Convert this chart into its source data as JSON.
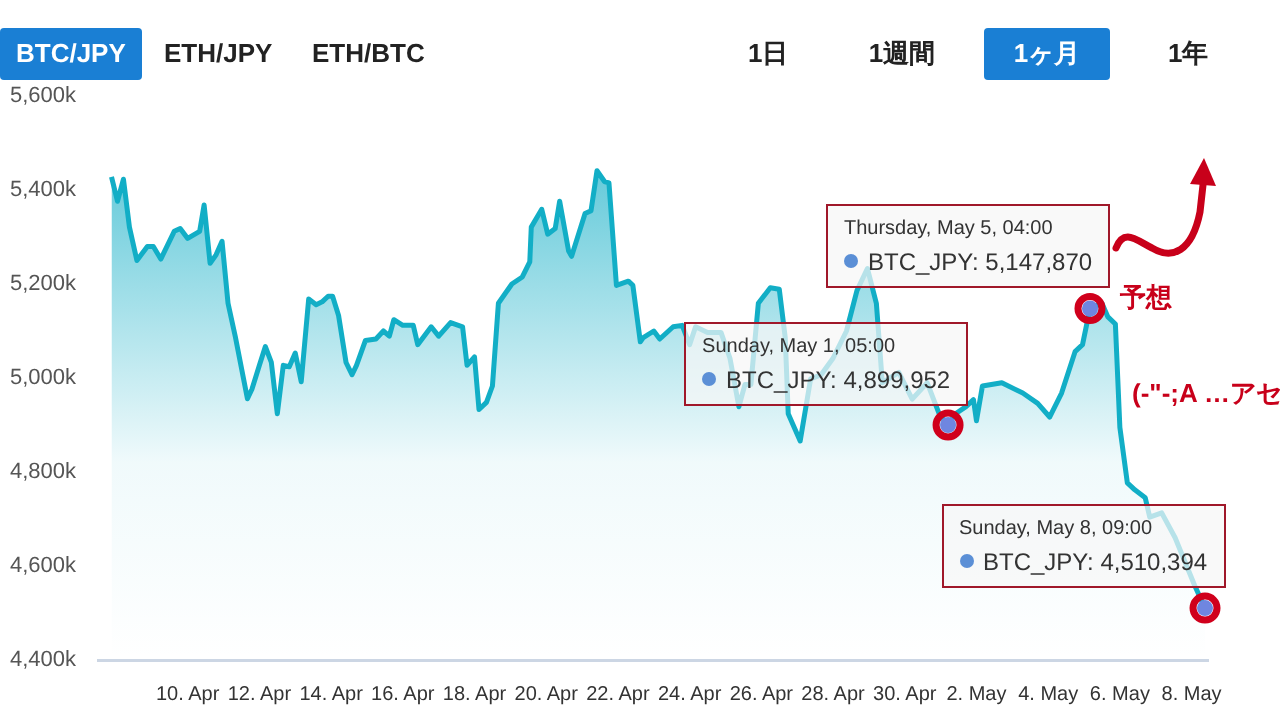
{
  "chart_data": {
    "type": "area",
    "color": "#12aec6",
    "marker": "none",
    "grid": false,
    "legend": false,
    "x": [
      "--04-07T21:00",
      "--04-08T01:00",
      "--04-08T05:00",
      "--04-08T09:00",
      "--04-08T14:00",
      "--04-08T21:00",
      "--04-09T01:00",
      "--04-09T06:00",
      "--04-09T15:00",
      "--04-09T19:00",
      "--04-10T00:00",
      "--04-10T08:00",
      "--04-10T11:00",
      "--04-10T15:00",
      "--04-10T19:00",
      "--04-10T23:00",
      "--04-11T03:00",
      "--04-11T08:00",
      "--04-11T16:00",
      "--04-11T19:00",
      "--04-12T00:00",
      "--04-12T04:00",
      "--04-12T08:00",
      "--04-12T12:00",
      "--04-12T16:00",
      "--04-12T20:00",
      "--04-13T00:00",
      "--04-13T04:00",
      "--04-13T09:00",
      "--04-13T14:00",
      "--04-13T18:00",
      "--04-13T22:00",
      "--04-14T01:00",
      "--04-14T05:00",
      "--04-14T10:00",
      "--04-14T14:00",
      "--04-14T17:00",
      "--04-14T23:00",
      "--04-15T06:00",
      "--04-15T11:00",
      "--04-15T15:00",
      "--04-15T18:00",
      "--04-16T00:00",
      "--04-16T07:00",
      "--04-16T10:00",
      "--04-16T19:00",
      "--04-17T00:00",
      "--04-17T08:00",
      "--04-17T16:00",
      "--04-17T19:00",
      "--04-18T00:00",
      "--04-18T03:00",
      "--04-18T08:00",
      "--04-18T12:00",
      "--04-18T16:00",
      "--04-19T01:00",
      "--04-19T08:00",
      "--04-19T13:00",
      "--04-19T14:00",
      "--04-19T21:00",
      "--04-20T01:00",
      "--04-20T06:00",
      "--04-20T09:00",
      "--04-20T15:00",
      "--04-20T17:00",
      "--04-21T02:00",
      "--04-21T06:00",
      "--04-21T10:00",
      "--04-21T15:00",
      "--04-21T18:00",
      "--04-21T23:00",
      "--04-22T07:00",
      "--04-22T10:00",
      "--04-22T15:00",
      "--04-22T17:00",
      "--04-23T00:00",
      "--04-23T04:00",
      "--04-23T13:00",
      "--04-23T19:00",
      "--04-24T00:00",
      "--04-24T04:00",
      "--04-24T12:00",
      "--04-24T21:00",
      "--04-25T03:00",
      "--04-25T09:00",
      "--04-25T13:00",
      "--04-25T17:00",
      "--04-25T22:00",
      "--04-26T06:00",
      "--04-26T12:00",
      "--04-26T16:00",
      "--04-26T18:00",
      "--04-27T02:00",
      "--04-27T09:00",
      "--04-27T16:00",
      "--04-28T00:00",
      "--04-28T09:00",
      "--04-28T16:00",
      "--04-28T23:00",
      "--04-29T05:00",
      "--04-29T09:00",
      "--04-29T20:00",
      "--04-30T05:00",
      "--04-30T15:00",
      "--04-30T23:00",
      "--05-01T05:00",
      "--05-01T10:00",
      "--05-01T17:00",
      "--05-01T22:00",
      "--05-02T00:00",
      "--05-02T04:00",
      "--05-02T17:00",
      "--05-03T07:00",
      "--05-03T17:00",
      "--05-04T01:00",
      "--05-04T09:00",
      "--05-04T18:00",
      "--05-04T23:00",
      "--05-05T04:00",
      "--05-05T12:00",
      "--05-05T16:00",
      "--05-05T21:00",
      "--05-06T00:00",
      "--05-06T05:00",
      "--05-06T10:00",
      "--05-06T17:00",
      "--05-06T20:00",
      "--05-07T04:00",
      "--05-07T13:00",
      "--05-08T02:00",
      "--05-08T09:00"
    ],
    "values": [
      5428000,
      5376000,
      5423000,
      5321000,
      5250000,
      5280000,
      5280000,
      5253000,
      5312000,
      5318000,
      5297000,
      5312000,
      5368000,
      5244000,
      5262000,
      5291000,
      5159000,
      5086000,
      4956000,
      4976000,
      5027000,
      5067000,
      5033000,
      4924000,
      5027000,
      5024000,
      5053000,
      4992000,
      5168000,
      5156000,
      5162000,
      5174000,
      5174000,
      5133000,
      5033000,
      5007000,
      5027000,
      5080000,
      5083000,
      5100000,
      5089000,
      5124000,
      5112000,
      5112000,
      5071000,
      5109000,
      5089000,
      5118000,
      5109000,
      5027000,
      5045000,
      4933000,
      4948000,
      4983000,
      5159000,
      5200000,
      5215000,
      5247000,
      5321000,
      5359000,
      5306000,
      5318000,
      5376000,
      5270000,
      5259000,
      5350000,
      5356000,
      5441000,
      5418000,
      5415000,
      5197000,
      5206000,
      5197000,
      5077000,
      5086000,
      5100000,
      5083000,
      5109000,
      5112000,
      5071000,
      5109000,
      5097000,
      5097000,
      5042000,
      4939000,
      4986000,
      4986000,
      5159000,
      5192000,
      5189000,
      5086000,
      4924000,
      4866000,
      4998000,
      5007000,
      5042000,
      5100000,
      5186000,
      5233000,
      5159000,
      4990000,
      5012000,
      4955000,
      4990000,
      4924000,
      4899952,
      4924000,
      4939000,
      4954000,
      4909000,
      4983000,
      4990000,
      4968000,
      4946000,
      4917000,
      4968000,
      5056000,
      5071000,
      5147870,
      5159000,
      5130000,
      5115000,
      4895000,
      4777000,
      4762000,
      4745000,
      4704000,
      4713000,
      4660000,
      4559000,
      4510394
    ],
    "xlim": [
      "--04-07T12:00",
      "--05-08T11:00"
    ],
    "xticks": [
      {
        "value": "--04-10",
        "label": "10. Apr"
      },
      {
        "value": "--04-12",
        "label": "12. Apr"
      },
      {
        "value": "--04-14",
        "label": "14. Apr"
      },
      {
        "value": "--04-16",
        "label": "16. Apr"
      },
      {
        "value": "--04-18",
        "label": "18. Apr"
      },
      {
        "value": "--04-20",
        "label": "20. Apr"
      },
      {
        "value": "--04-22",
        "label": "22. Apr"
      },
      {
        "value": "--04-24",
        "label": "24. Apr"
      },
      {
        "value": "--04-26",
        "label": "26. Apr"
      },
      {
        "value": "--04-28",
        "label": "28. Apr"
      },
      {
        "value": "--04-30",
        "label": "30. Apr"
      },
      {
        "value": "--05-02",
        "label": "2. May"
      },
      {
        "value": "--05-04",
        "label": "4. May"
      },
      {
        "value": "--05-06",
        "label": "6. May"
      },
      {
        "value": "--05-08",
        "label": "8. May"
      }
    ],
    "ylim": [
      4400000,
      5600000
    ],
    "yticks": [
      {
        "value": 4400000,
        "label": "4,400k"
      },
      {
        "value": 4600000,
        "label": "4,600k"
      },
      {
        "value": 4800000,
        "label": "4,800k"
      },
      {
        "value": 5000000,
        "label": "5,000k"
      },
      {
        "value": 5200000,
        "label": "5,200k"
      },
      {
        "value": 5400000,
        "label": "5,400k"
      },
      {
        "value": 5600000,
        "label": "5,600k"
      }
    ],
    "annotations": [
      "BTC/JPY",
      "ETH/JPY",
      "ETH/BTC",
      "1日",
      "1週間",
      "1ヶ月",
      "1年",
      "予想",
      "(-\"-;A …アセ",
      {
        "text": "Thursday, May 5, 04:00\nBTC_JPY: 5,147,870",
        "x": "--05-05T04:00",
        "y": 5147870
      },
      {
        "text": "Sunday, May 1, 05:00\nBTC_JPY: 4,899,952",
        "x": "--05-01T05:00",
        "y": 4899952
      },
      {
        "text": "Sunday, May 8, 09:00\nBTC_JPY: 4,510,394",
        "x": "--05-08T09:00",
        "y": 4510394
      }
    ]
  }
}
